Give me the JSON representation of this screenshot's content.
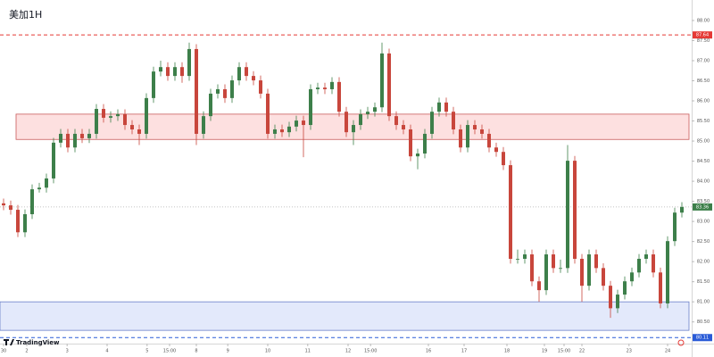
{
  "chart_data": {
    "type": "candlestick",
    "title": "美加1H",
    "logo": "TradingView",
    "up_color": "#3d7f4a",
    "down_color": "#c8463c",
    "ylim": [
      79.96,
      88.51
    ],
    "xlim": [
      -0.5,
      96.375
    ],
    "yticks": [
      {
        "value": 80.5,
        "label": "80.50"
      },
      {
        "value": 81,
        "label": "81.00"
      },
      {
        "value": 81.5,
        "label": "81.50"
      },
      {
        "value": 82,
        "label": "82.00"
      },
      {
        "value": 82.5,
        "label": "82.50"
      },
      {
        "value": 83,
        "label": "83.00"
      },
      {
        "value": 83.5,
        "label": "83.50"
      },
      {
        "value": 84,
        "label": "84.00"
      },
      {
        "value": 84.5,
        "label": "84.50"
      },
      {
        "value": 85,
        "label": "85.00"
      },
      {
        "value": 85.5,
        "label": "85.50"
      },
      {
        "value": 86,
        "label": "86.00"
      },
      {
        "value": 86.5,
        "label": "86.50"
      },
      {
        "value": 87,
        "label": "87.00"
      },
      {
        "value": 87.5,
        "label": "87.50"
      },
      {
        "value": 88,
        "label": "88.00"
      }
    ],
    "xticks": [
      {
        "value": 0,
        "label": "30"
      },
      {
        "value": 3.25,
        "label": "2"
      },
      {
        "value": 8.9,
        "label": "3"
      },
      {
        "value": 14.5,
        "label": "4"
      },
      {
        "value": 20.1,
        "label": "5"
      },
      {
        "value": 23.25,
        "label": "15:00"
      },
      {
        "value": 27,
        "label": "8"
      },
      {
        "value": 31.4,
        "label": "9"
      },
      {
        "value": 37,
        "label": "10"
      },
      {
        "value": 42.6,
        "label": "11"
      },
      {
        "value": 48.25,
        "label": "12"
      },
      {
        "value": 51.4,
        "label": "15:00"
      },
      {
        "value": 59.5,
        "label": "16"
      },
      {
        "value": 64.5,
        "label": "17"
      },
      {
        "value": 70.5,
        "label": "18"
      },
      {
        "value": 75.75,
        "label": "19"
      },
      {
        "value": 78.5,
        "label": "15:00"
      },
      {
        "value": 81,
        "label": "22"
      },
      {
        "value": 87.6,
        "label": "23"
      },
      {
        "value": 93,
        "label": "24"
      }
    ],
    "zones": [
      {
        "low": 85.04,
        "high": 85.67,
        "color": "#fde0e0",
        "border": "#c85a5a"
      },
      {
        "low": 80.29,
        "high": 81.0,
        "color": "#e3e9fb",
        "border": "#6a7fc8"
      }
    ],
    "levels": [
      {
        "value": 87.64,
        "color": "#e53935"
      },
      {
        "value": 80.11,
        "color": "#2a5bd7"
      }
    ],
    "last_price": 83.36,
    "values": [
      [
        83.45,
        83.57,
        83.28,
        83.4
      ],
      [
        83.4,
        83.52,
        83.17,
        83.29
      ],
      [
        83.29,
        83.41,
        82.61,
        82.73
      ],
      [
        82.73,
        83.3,
        82.61,
        83.18
      ],
      [
        83.18,
        83.92,
        83.06,
        83.8
      ],
      [
        83.8,
        83.96,
        83.72,
        83.84
      ],
      [
        83.84,
        84.19,
        83.72,
        84.07
      ],
      [
        84.07,
        85.08,
        83.95,
        84.96
      ],
      [
        84.96,
        85.3,
        84.84,
        85.18
      ],
      [
        85.18,
        85.3,
        84.72,
        84.84
      ],
      [
        84.84,
        85.3,
        84.72,
        85.18
      ],
      [
        85.18,
        85.3,
        84.95,
        85.07
      ],
      [
        85.07,
        85.3,
        84.95,
        85.18
      ],
      [
        85.18,
        85.92,
        85.06,
        85.8
      ],
      [
        85.8,
        85.92,
        85.46,
        85.58
      ],
      [
        85.58,
        85.74,
        85.46,
        85.62
      ],
      [
        85.62,
        85.79,
        85.5,
        85.67
      ],
      [
        85.67,
        85.79,
        85.28,
        85.4
      ],
      [
        85.4,
        85.52,
        85.17,
        85.29
      ],
      [
        85.29,
        85.41,
        84.9,
        85.18
      ],
      [
        85.18,
        86.19,
        85.06,
        86.07
      ],
      [
        86.07,
        86.85,
        85.95,
        86.73
      ],
      [
        86.73,
        87.0,
        86.61,
        86.84
      ],
      [
        86.84,
        86.96,
        86.5,
        86.62
      ],
      [
        86.62,
        86.96,
        86.5,
        86.84
      ],
      [
        86.84,
        86.96,
        86.45,
        86.62
      ],
      [
        86.62,
        87.45,
        86.5,
        87.29
      ],
      [
        87.29,
        87.41,
        84.9,
        85.18
      ],
      [
        85.18,
        85.74,
        85.06,
        85.62
      ],
      [
        85.62,
        86.3,
        85.5,
        86.18
      ],
      [
        86.18,
        86.41,
        86.06,
        86.29
      ],
      [
        86.29,
        86.41,
        85.95,
        86.07
      ],
      [
        86.07,
        86.63,
        85.95,
        86.51
      ],
      [
        86.51,
        86.96,
        86.39,
        86.84
      ],
      [
        86.84,
        86.96,
        86.5,
        86.62
      ],
      [
        86.62,
        86.74,
        86.39,
        86.51
      ],
      [
        86.51,
        86.63,
        86.06,
        86.18
      ],
      [
        86.18,
        86.3,
        85.06,
        85.18
      ],
      [
        85.18,
        85.41,
        85.06,
        85.29
      ],
      [
        85.29,
        85.41,
        85.1,
        85.22
      ],
      [
        85.22,
        85.48,
        85.1,
        85.36
      ],
      [
        85.36,
        85.63,
        85.24,
        85.51
      ],
      [
        85.51,
        85.63,
        84.6,
        85.4
      ],
      [
        85.4,
        86.41,
        85.28,
        86.29
      ],
      [
        86.29,
        86.45,
        86.17,
        86.33
      ],
      [
        86.33,
        86.45,
        86.17,
        86.29
      ],
      [
        86.29,
        86.59,
        86.17,
        86.47
      ],
      [
        86.47,
        86.59,
        85.61,
        85.73
      ],
      [
        85.73,
        85.85,
        85.1,
        85.22
      ],
      [
        85.22,
        85.52,
        84.9,
        85.4
      ],
      [
        85.4,
        85.79,
        85.28,
        85.67
      ],
      [
        85.67,
        85.85,
        85.55,
        85.73
      ],
      [
        85.73,
        85.96,
        85.61,
        85.84
      ],
      [
        85.84,
        87.45,
        85.72,
        87.18
      ],
      [
        87.18,
        87.3,
        85.5,
        85.62
      ],
      [
        85.62,
        85.74,
        85.28,
        85.4
      ],
      [
        85.4,
        85.52,
        85.17,
        85.29
      ],
      [
        85.29,
        85.41,
        84.5,
        84.62
      ],
      [
        84.62,
        84.81,
        84.3,
        84.69
      ],
      [
        84.69,
        85.3,
        84.57,
        85.18
      ],
      [
        85.18,
        85.85,
        85.06,
        85.73
      ],
      [
        85.73,
        86.08,
        85.61,
        85.96
      ],
      [
        85.96,
        86.08,
        85.61,
        85.73
      ],
      [
        85.73,
        85.85,
        85.17,
        85.29
      ],
      [
        85.29,
        85.41,
        84.72,
        84.84
      ],
      [
        84.84,
        85.52,
        84.72,
        85.4
      ],
      [
        85.4,
        85.52,
        85.17,
        85.29
      ],
      [
        85.29,
        85.41,
        85.06,
        85.18
      ],
      [
        85.18,
        85.3,
        84.72,
        84.84
      ],
      [
        84.84,
        84.96,
        84.61,
        84.73
      ],
      [
        84.73,
        84.85,
        84.28,
        84.4
      ],
      [
        84.4,
        84.52,
        81.95,
        82.07
      ],
      [
        82.07,
        82.3,
        81.95,
        82.07
      ],
      [
        82.07,
        82.3,
        81.95,
        82.18
      ],
      [
        82.18,
        82.3,
        81.39,
        81.51
      ],
      [
        81.51,
        81.63,
        81.0,
        81.29
      ],
      [
        81.29,
        82.3,
        81.17,
        82.18
      ],
      [
        82.18,
        82.3,
        81.72,
        81.84
      ],
      [
        81.84,
        82.05,
        81.72,
        81.84
      ],
      [
        81.84,
        84.9,
        81.72,
        84.51
      ],
      [
        84.51,
        84.63,
        81.95,
        82.07
      ],
      [
        82.07,
        82.19,
        81.0,
        81.4
      ],
      [
        81.4,
        82.3,
        81.28,
        82.18
      ],
      [
        82.18,
        82.3,
        81.72,
        81.84
      ],
      [
        81.84,
        81.96,
        81.28,
        81.4
      ],
      [
        81.4,
        81.52,
        80.6,
        80.84
      ],
      [
        80.84,
        81.3,
        80.72,
        81.18
      ],
      [
        81.18,
        81.63,
        81.06,
        81.51
      ],
      [
        81.51,
        81.85,
        81.39,
        81.73
      ],
      [
        81.73,
        82.19,
        81.61,
        82.07
      ],
      [
        82.07,
        82.3,
        81.95,
        82.18
      ],
      [
        82.18,
        82.3,
        81.61,
        81.73
      ],
      [
        81.73,
        81.85,
        80.84,
        80.96
      ],
      [
        80.96,
        82.63,
        80.84,
        82.51
      ],
      [
        82.51,
        83.34,
        82.39,
        83.22
      ],
      [
        83.22,
        83.48,
        83.1,
        83.36
      ]
    ]
  }
}
